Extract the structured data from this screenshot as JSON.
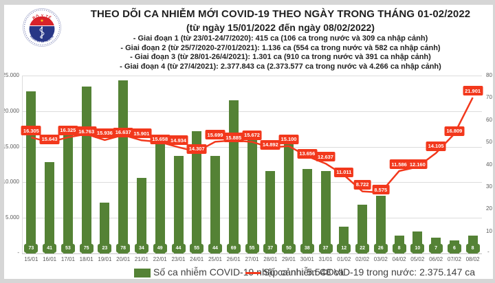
{
  "window": {
    "background": "#ffffff",
    "frame_color": "#d6d6d6"
  },
  "logo": {
    "top_text": "BỘ Y TẾ",
    "bottom_text": "MINISTRY OF HEALTH",
    "ring_color": "#27338a",
    "red": "#d8232a",
    "blue": "#283786",
    "star_color": "#f8d41e"
  },
  "chart_data": {
    "type": "bar",
    "subtype": "combo-bar-line-dual-axis",
    "title": "THEO DÕI CA NHIỄM MỚI COVID-19 THEO NGÀY TRONG THÁNG 01-02/2022",
    "subtitle": "(từ ngày 15/01/2022 đến ngày 08/02/2022)",
    "annotations": [
      "- Giai đoạn 1 (từ 23/01-24/7/2020): 415 ca (106 ca trong nước và 309 ca nhập cảnh)",
      "- Giai đoạn 2 (từ 25/7/2020-27/01/2021): 1.136 ca (554 ca trong nước và 582 ca nhập cảnh)",
      "- Giai đoạn 3 (từ 28/01-26/4/2021): 1.301 ca (910 ca trong nước và 391 ca nhập cảnh)",
      "- Giai đoạn 4 (từ 27/4/2021): 2.377.843 ca (2.373.577 ca trong nước và 4.266 ca nhập cảnh)"
    ],
    "categories": [
      "15/01",
      "16/01",
      "17/01",
      "18/01",
      "19/01",
      "20/01",
      "21/01",
      "22/01",
      "23/01",
      "24/01",
      "25/01",
      "26/01",
      "27/01",
      "28/01",
      "29/01",
      "30/01",
      "31/01",
      "01/02",
      "02/02",
      "03/02",
      "04/02",
      "05/02",
      "06/02",
      "07/02",
      "08/02"
    ],
    "series": [
      {
        "name": "Số ca nhiễm COVID-19 nhập cảnh",
        "type": "bar",
        "axis": "right",
        "color": "#548235",
        "values": [
          73,
          41,
          53,
          75,
          23,
          78,
          34,
          49,
          44,
          55,
          44,
          69,
          55,
          37,
          50,
          38,
          37,
          12,
          22,
          26,
          8,
          10,
          7,
          6,
          8
        ]
      },
      {
        "name": "Số ca nhiễm COVID-19 trong nước",
        "type": "line",
        "axis": "left",
        "color": "#f2381c",
        "values": [
          16305,
          15643,
          16325,
          16763,
          15936,
          16637,
          15901,
          15658,
          14934,
          14307,
          15699,
          15885,
          15672,
          14892,
          15100,
          13656,
          12637,
          11011,
          8722,
          8575,
          11586,
          12160,
          14105,
          16809,
          21901
        ]
      }
    ],
    "left_axis": {
      "min": 0,
      "max": 25000,
      "step": 5000,
      "tick_labels": [
        "25.000",
        "20.000",
        "15.000",
        "10.000",
        "5.000"
      ],
      "zero_label": "-"
    },
    "right_axis": {
      "min": 0,
      "max": 80,
      "step": 10,
      "tick_labels": [
        "80",
        "70",
        "60",
        "50",
        "40",
        "30",
        "20",
        "10"
      ],
      "zero_label": "-"
    },
    "grid": true,
    "legend_position": "bottom",
    "legend": [
      {
        "label": "Số ca nhiễm COVID-19 nhập cảnh: 5.548 ca",
        "marker": "square",
        "color": "#548235"
      },
      {
        "label": "Số ca nhiễm COVID-19 trong nước: 2.375.147 ca",
        "marker": "line",
        "color": "#f2381c"
      }
    ]
  }
}
